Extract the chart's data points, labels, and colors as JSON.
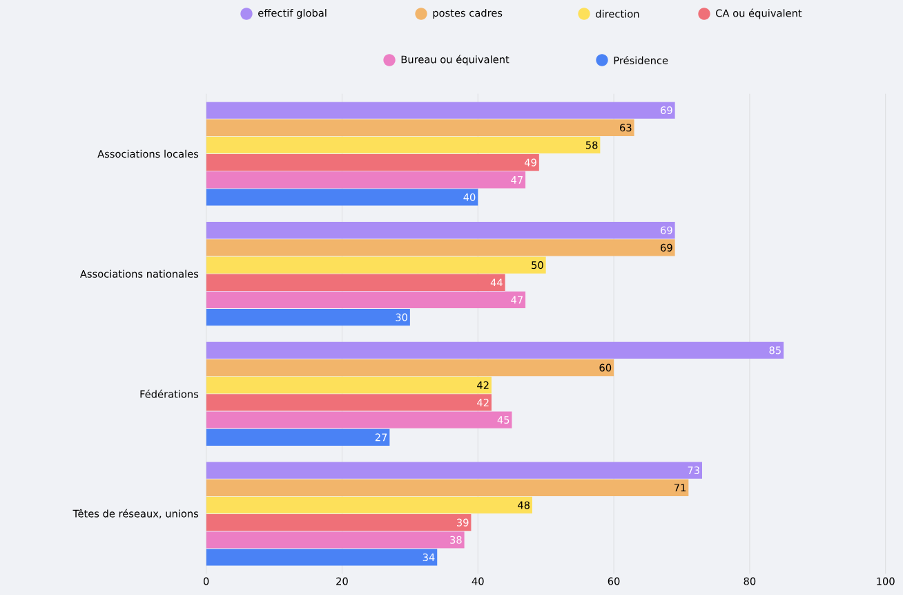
{
  "chart_data": {
    "type": "bar",
    "orientation": "horizontal",
    "categories": [
      "Associations locales",
      "Associations nationales",
      "Fédérations",
      "Têtes de réseaux, unions"
    ],
    "series": [
      {
        "name": "effectif global",
        "color": "#a98cf5",
        "values": [
          69,
          69,
          85,
          73
        ]
      },
      {
        "name": "postes cadres",
        "color": "#f2b56b",
        "values": [
          63,
          69,
          60,
          71
        ]
      },
      {
        "name": "direction",
        "color": "#fde05a",
        "values": [
          58,
          50,
          42,
          48
        ]
      },
      {
        "name": "CA ou équivalent",
        "color": "#ef7078",
        "values": [
          49,
          44,
          42,
          39
        ]
      },
      {
        "name": "Bureau ou équivalent",
        "color": "#ec7ec4",
        "values": [
          47,
          47,
          45,
          38
        ]
      },
      {
        "name": "Présidence",
        "color": "#4a82f5",
        "values": [
          40,
          30,
          27,
          34
        ]
      }
    ],
    "xlim": [
      0,
      100
    ],
    "xticks": [
      0,
      20,
      40,
      60,
      80,
      100
    ],
    "grid": "x",
    "legend": "top",
    "data_labels": true
  }
}
